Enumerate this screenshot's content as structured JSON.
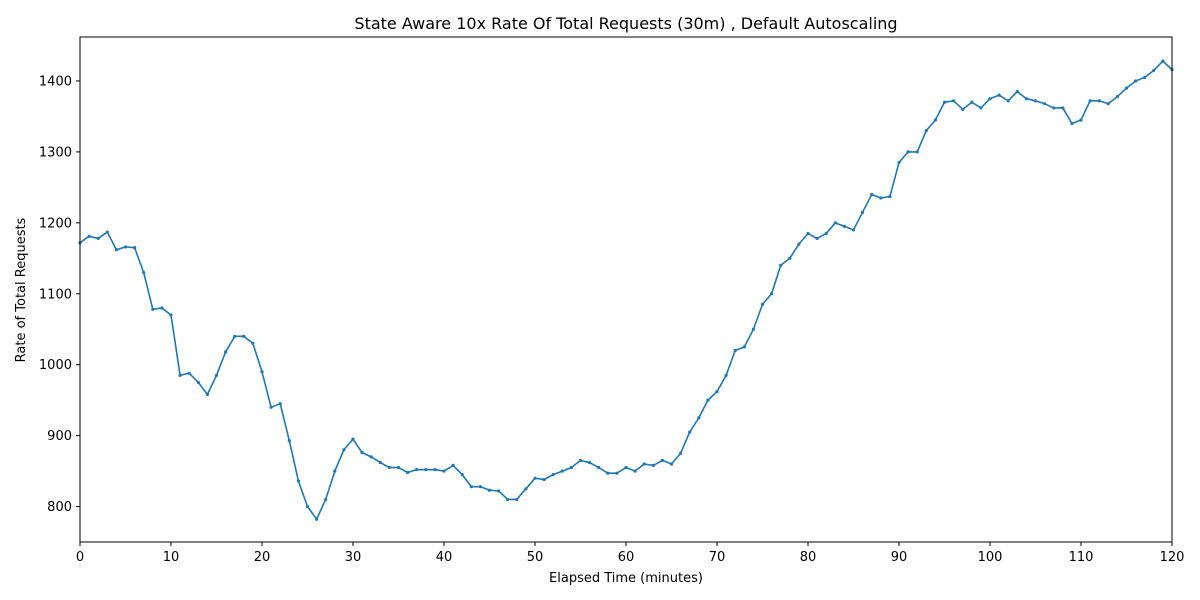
{
  "chart_data": {
    "type": "line",
    "title": "State Aware 10x Rate Of Total Requests (30m) , Default Autoscaling",
    "xlabel": "Elapsed Time (minutes)",
    "ylabel": "Rate of Total Requests",
    "xlim": [
      0,
      120
    ],
    "ylim": [
      750,
      1462
    ],
    "xticks": [
      0,
      10,
      20,
      30,
      40,
      50,
      60,
      70,
      80,
      90,
      100,
      110,
      120
    ],
    "yticks": [
      800,
      900,
      1000,
      1100,
      1200,
      1300,
      1400
    ],
    "grid": false,
    "line_color": "#1f77b4",
    "marker": "dot",
    "series": [
      {
        "x": [
          0,
          1,
          2,
          3,
          4,
          5,
          6,
          7,
          8,
          9,
          10,
          11,
          12,
          13,
          14,
          15,
          16,
          17,
          18,
          19,
          20,
          21,
          22,
          23,
          24,
          25,
          26,
          27,
          28,
          29,
          30,
          31,
          32,
          33,
          34,
          35,
          36,
          37,
          38,
          39,
          40,
          41,
          42,
          43,
          44,
          45,
          46,
          47,
          48,
          49,
          50,
          51,
          52,
          53,
          54,
          55,
          56,
          57,
          58,
          59,
          60,
          61,
          62,
          63,
          64,
          65,
          66,
          67,
          68,
          69,
          70,
          71,
          72,
          73,
          74,
          75,
          76,
          77,
          78,
          79,
          80,
          81,
          82,
          83,
          84,
          85,
          86,
          87,
          88,
          89,
          90,
          91,
          92,
          93,
          94,
          95,
          96,
          97,
          98,
          99,
          100,
          101,
          102,
          103,
          104,
          105,
          106,
          107,
          108,
          109,
          110,
          111,
          112,
          113,
          114,
          115,
          116,
          117,
          118,
          119,
          120
        ],
        "y": [
          1172,
          1181,
          1178,
          1187,
          1162,
          1166,
          1165,
          1130,
          1078,
          1080,
          1070,
          985,
          988,
          975,
          958,
          985,
          1018,
          1040,
          1040,
          1030,
          990,
          940,
          945,
          893,
          836,
          800,
          782,
          810,
          850,
          880,
          895,
          876,
          870,
          862,
          855,
          855,
          848,
          852,
          852,
          852,
          850,
          858,
          845,
          828,
          828,
          823,
          822,
          810,
          810,
          825,
          840,
          838,
          845,
          850,
          855,
          865,
          862,
          855,
          847,
          847,
          855,
          850,
          860,
          858,
          865,
          860,
          875,
          905,
          925,
          950,
          962,
          985,
          1020,
          1025,
          1050,
          1085,
          1100,
          1140,
          1150,
          1170,
          1185,
          1178,
          1185,
          1200,
          1195,
          1190,
          1215,
          1240,
          1235,
          1237,
          1285,
          1300,
          1300,
          1330,
          1345,
          1370,
          1372,
          1360,
          1370,
          1362,
          1375,
          1380,
          1372,
          1385,
          1375,
          1372,
          1368,
          1362,
          1362,
          1340,
          1345,
          1372,
          1372,
          1368,
          1378,
          1390,
          1400,
          1405,
          1415,
          1428,
          1416
        ]
      }
    ]
  }
}
